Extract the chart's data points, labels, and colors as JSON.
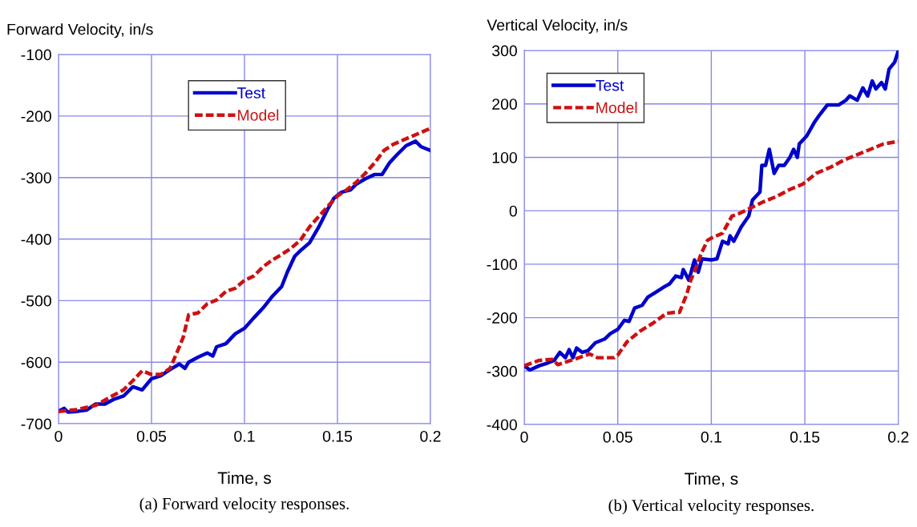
{
  "chart_data": [
    {
      "type": "line",
      "ylabel": "Forward Velocity, in/s",
      "xlabel": "Time, s",
      "annotations": [
        "(a) Forward velocity responses."
      ],
      "xlim": [
        0,
        0.2
      ],
      "xticks": [
        0,
        0.05,
        0.1,
        0.15,
        0.2
      ],
      "ylim": [
        -700,
        -100
      ],
      "yticks": [
        -700,
        -600,
        -500,
        -400,
        -300,
        -200,
        -100
      ],
      "grid": true,
      "legend": "top",
      "series": [
        {
          "name": "Test",
          "color": "#0000cc",
          "line_style": "solid",
          "x": [
            0,
            0.003,
            0.005,
            0.01,
            0.015,
            0.02,
            0.025,
            0.03,
            0.035,
            0.04,
            0.045,
            0.05,
            0.055,
            0.06,
            0.065,
            0.068,
            0.07,
            0.075,
            0.08,
            0.083,
            0.085,
            0.09,
            0.095,
            0.1,
            0.105,
            0.11,
            0.115,
            0.12,
            0.123,
            0.127,
            0.13,
            0.135,
            0.14,
            0.145,
            0.148,
            0.152,
            0.157,
            0.16,
            0.165,
            0.17,
            0.174,
            0.178,
            0.182,
            0.187,
            0.192,
            0.195,
            0.2
          ],
          "values": [
            -680,
            -675,
            -681,
            -680,
            -678,
            -668,
            -668,
            -660,
            -655,
            -640,
            -645,
            -627,
            -622,
            -612,
            -603,
            -610,
            -600,
            -592,
            -585,
            -590,
            -575,
            -570,
            -554,
            -545,
            -528,
            -512,
            -493,
            -477,
            -454,
            -428,
            -419,
            -406,
            -380,
            -350,
            -334,
            -324,
            -320,
            -311,
            -302,
            -295,
            -295,
            -276,
            -263,
            -248,
            -241,
            -250,
            -256
          ]
        },
        {
          "name": "Model",
          "color": "#cc1111",
          "line_style": "dashed",
          "x": [
            0,
            0.01,
            0.02,
            0.03,
            0.035,
            0.04,
            0.045,
            0.05,
            0.055,
            0.06,
            0.065,
            0.067,
            0.07,
            0.075,
            0.08,
            0.085,
            0.09,
            0.095,
            0.1,
            0.105,
            0.11,
            0.115,
            0.12,
            0.125,
            0.13,
            0.135,
            0.14,
            0.145,
            0.15,
            0.155,
            0.16,
            0.165,
            0.17,
            0.175,
            0.18,
            0.19,
            0.2
          ],
          "values": [
            -680,
            -677,
            -670,
            -653,
            -645,
            -630,
            -614,
            -620,
            -620,
            -610,
            -575,
            -560,
            -523,
            -520,
            -505,
            -499,
            -485,
            -480,
            -467,
            -460,
            -445,
            -434,
            -425,
            -415,
            -402,
            -380,
            -363,
            -346,
            -330,
            -320,
            -308,
            -293,
            -276,
            -256,
            -246,
            -233,
            -220
          ]
        }
      ]
    },
    {
      "type": "line",
      "ylabel": "Vertical Velocity, in/s",
      "xlabel": "Time, s",
      "annotations": [
        "(b) Vertical velocity responses."
      ],
      "xlim": [
        0,
        0.2
      ],
      "xticks": [
        0,
        0.05,
        0.1,
        0.15,
        0.2
      ],
      "ylim": [
        -400,
        300
      ],
      "yticks": [
        -400,
        -300,
        -200,
        -100,
        0,
        100,
        200,
        300
      ],
      "grid": true,
      "legend": "top left",
      "series": [
        {
          "name": "Test",
          "color": "#0000cc",
          "line_style": "solid",
          "x": [
            0,
            0.003,
            0.008,
            0.0125,
            0.016,
            0.019,
            0.022,
            0.024,
            0.026,
            0.028,
            0.031,
            0.034,
            0.038,
            0.043,
            0.046,
            0.05,
            0.0535,
            0.056,
            0.059,
            0.063,
            0.066,
            0.0705,
            0.075,
            0.0776,
            0.081,
            0.084,
            0.085,
            0.088,
            0.091,
            0.093,
            0.095,
            0.1,
            0.103,
            0.106,
            0.109,
            0.11,
            0.112,
            0.116,
            0.12,
            0.122,
            0.126,
            0.127,
            0.129,
            0.131,
            0.1336,
            0.136,
            0.139,
            0.142,
            0.144,
            0.146,
            0.147,
            0.151,
            0.155,
            0.158,
            0.162,
            0.168,
            0.172,
            0.174,
            0.178,
            0.181,
            0.1836,
            0.186,
            0.188,
            0.191,
            0.193,
            0.195,
            0.198,
            0.2
          ],
          "values": [
            -290,
            -298,
            -290,
            -285,
            -280,
            -265,
            -275,
            -260,
            -275,
            -257,
            -265,
            -262,
            -247,
            -240,
            -230,
            -222,
            -205,
            -207,
            -182,
            -177,
            -162,
            -152,
            -142,
            -137,
            -122,
            -125,
            -110,
            -130,
            -92,
            -115,
            -90,
            -92,
            -90,
            -57,
            -62,
            -47,
            -57,
            -30,
            -10,
            20,
            35,
            85,
            85,
            115,
            70,
            85,
            85,
            100,
            115,
            100,
            125,
            140,
            165,
            180,
            198,
            198,
            207,
            215,
            207,
            230,
            215,
            243,
            228,
            240,
            228,
            265,
            278,
            300
          ]
        },
        {
          "name": "Model",
          "color": "#cc1111",
          "line_style": "dashed",
          "x": [
            0,
            0.008,
            0.015,
            0.018,
            0.025,
            0.035,
            0.039,
            0.048,
            0.05,
            0.055,
            0.062,
            0.069,
            0.076,
            0.0805,
            0.083,
            0.087,
            0.089,
            0.092,
            0.0946,
            0.098,
            0.1007,
            0.106,
            0.111,
            0.115,
            0.121,
            0.128,
            0.135,
            0.142,
            0.149,
            0.156,
            0.164,
            0.171,
            0.178,
            0.185,
            0.192,
            0.2
          ],
          "values": [
            -290,
            -280,
            -278,
            -288,
            -280,
            -268,
            -275,
            -275,
            -270,
            -245,
            -225,
            -210,
            -192,
            -190,
            -190,
            -155,
            -130,
            -105,
            -80,
            -55,
            -50,
            -42,
            -10,
            -5,
            5,
            17,
            27,
            40,
            50,
            70,
            82,
            95,
            105,
            115,
            125,
            130
          ]
        }
      ]
    }
  ]
}
